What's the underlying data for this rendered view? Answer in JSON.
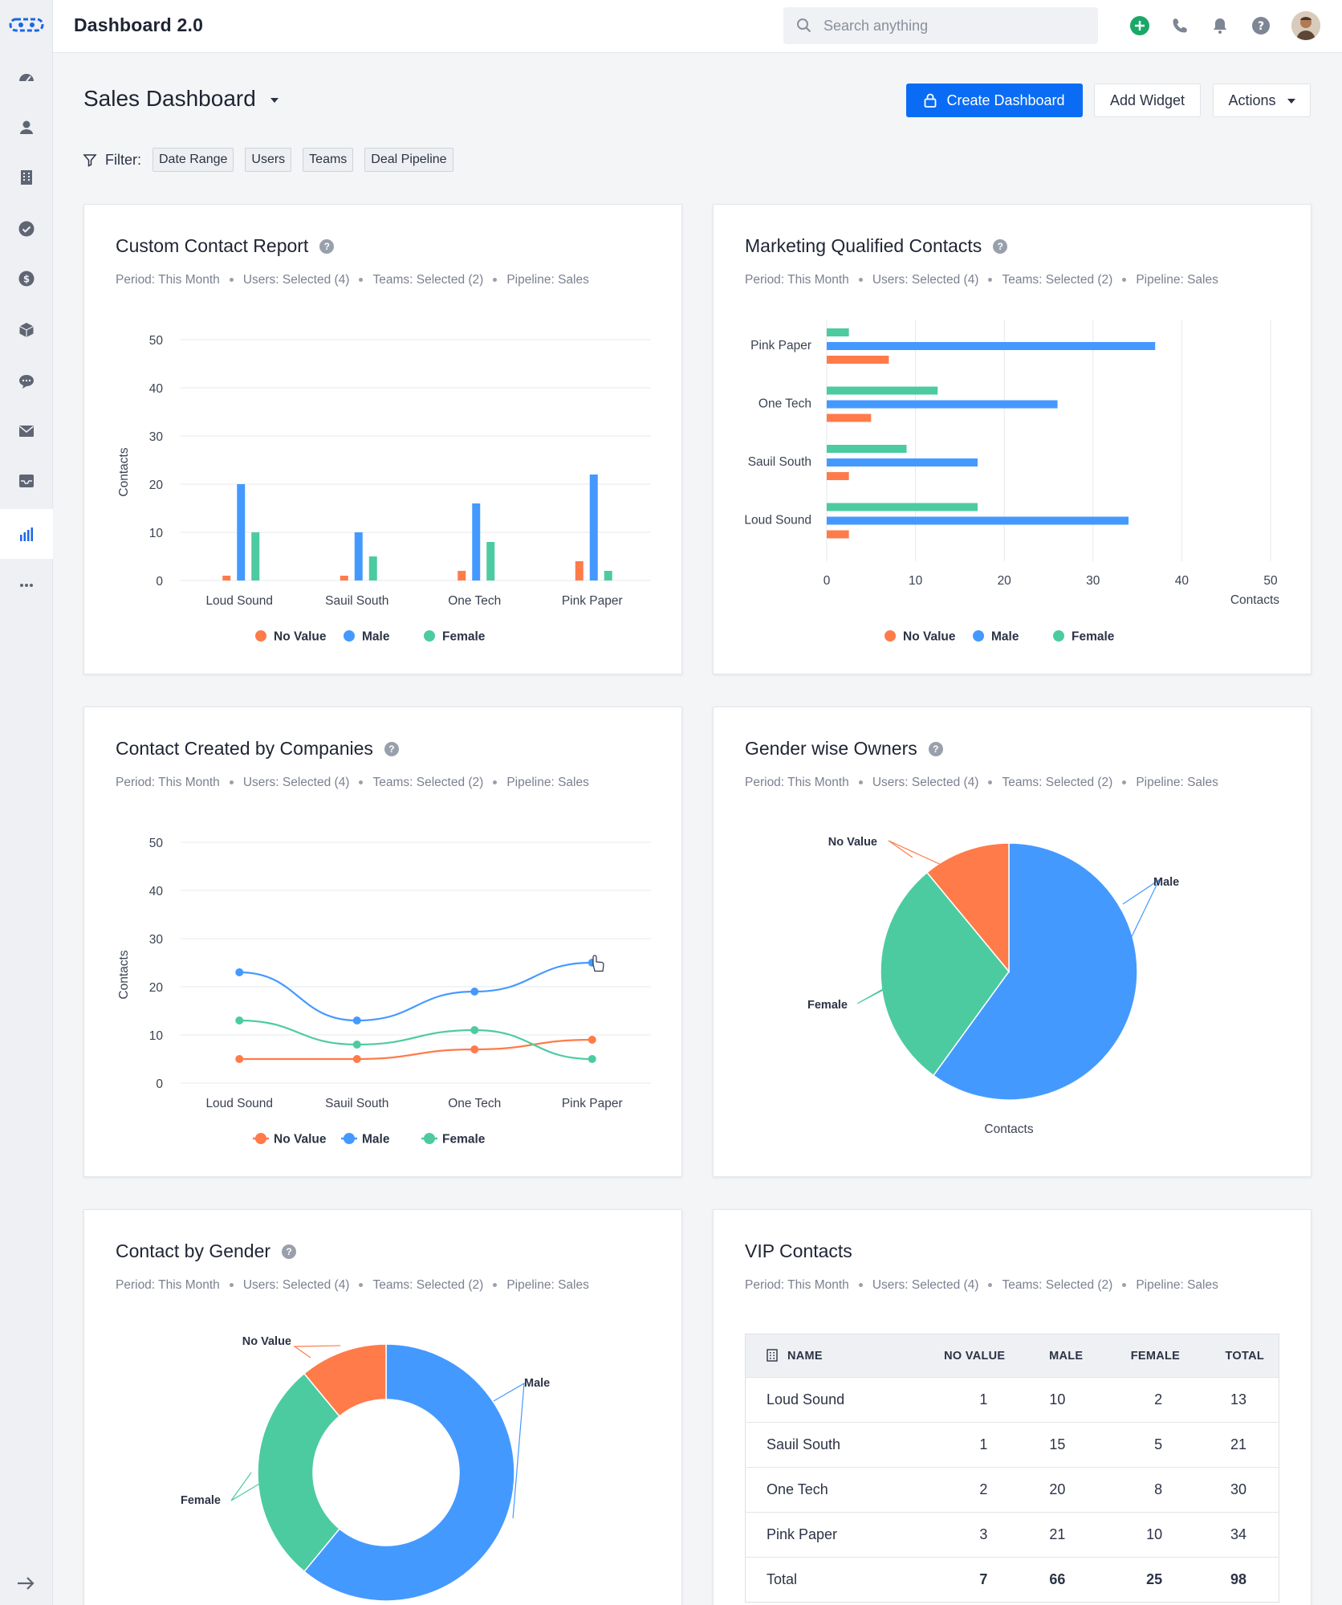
{
  "app": {
    "title": "Dashboard 2.0"
  },
  "search": {
    "placeholder": "Search anything"
  },
  "icons": {
    "logo": "logo-icon",
    "dashboard": "speedometer-icon",
    "contacts": "person-icon",
    "companies": "building-icon",
    "tasks": "checkmark-icon",
    "deals": "dollar-icon",
    "products": "box-icon",
    "chat": "chat-icon",
    "email": "mail-icon",
    "inbox": "inbox-icon",
    "reports": "bar-chart-icon",
    "more": "more-icon",
    "expand": "arrow-right-icon"
  },
  "colors": {
    "accent": "#0a6cf5",
    "no_value": "#ff7b4a",
    "male": "#4499ff",
    "female": "#4ccba1",
    "add": "#1aa866"
  },
  "header": {
    "title": "Sales Dashboard",
    "create_label": "Create Dashboard",
    "add_widget_label": "Add Widget",
    "actions_label": "Actions"
  },
  "filter": {
    "label": "Filter:",
    "chips": [
      "Date Range",
      "Users",
      "Teams",
      "Deal Pipeline"
    ]
  },
  "meta": {
    "period": "Period: This Month",
    "users": "Users: Selected (4)",
    "teams": "Teams: Selected (2)",
    "pipeline": "Pipeline: Sales"
  },
  "legend": {
    "no_value": "No Value",
    "male": "Male",
    "female": "Female"
  },
  "cards": {
    "custom": {
      "title": "Custom Contact Report"
    },
    "mql": {
      "title": "Marketing Qualified Contacts"
    },
    "companies": {
      "title": "Contact Created by Companies"
    },
    "owners": {
      "title": "Gender wise Owners"
    },
    "gender": {
      "title": "Contact by Gender"
    },
    "vip": {
      "title": "VIP Contacts"
    }
  },
  "chart_data": [
    {
      "type": "bar",
      "title": "Custom Contact Report",
      "categories": [
        "Loud Sound",
        "Sauil South",
        "One Tech",
        "Pink Paper"
      ],
      "series": [
        {
          "name": "No Value",
          "values": [
            1,
            1,
            2,
            4
          ]
        },
        {
          "name": "Male",
          "values": [
            20,
            10,
            16,
            22
          ]
        },
        {
          "name": "Female",
          "values": [
            10,
            5,
            8,
            2
          ]
        }
      ],
      "ylabel": "Contacts",
      "ylim": [
        0,
        50
      ],
      "yticks": [
        0,
        10,
        20,
        30,
        40,
        50
      ]
    },
    {
      "type": "bar",
      "orientation": "horizontal",
      "title": "Marketing Qualified Contacts",
      "categories": [
        "Pink Paper",
        "One Tech",
        "Sauil South",
        "Loud Sound"
      ],
      "series": [
        {
          "name": "Female",
          "values": [
            2.5,
            12.5,
            9,
            17
          ]
        },
        {
          "name": "Male",
          "values": [
            37,
            26,
            17,
            34
          ]
        },
        {
          "name": "No Value",
          "values": [
            7,
            5,
            2.5,
            2.5
          ]
        }
      ],
      "xlabel": "Contacts",
      "xlim": [
        0,
        50
      ],
      "xticks": [
        0,
        10,
        20,
        30,
        40,
        50
      ]
    },
    {
      "type": "line",
      "title": "Contact Created by Companies",
      "categories": [
        "Loud Sound",
        "Sauil South",
        "One Tech",
        "Pink Paper"
      ],
      "series": [
        {
          "name": "No Value",
          "values": [
            5,
            5,
            7,
            9
          ]
        },
        {
          "name": "Male",
          "values": [
            23,
            13,
            19,
            25
          ]
        },
        {
          "name": "Female",
          "values": [
            13,
            8,
            11,
            5
          ]
        }
      ],
      "ylabel": "Contacts",
      "ylim": [
        0,
        50
      ],
      "yticks": [
        0,
        10,
        20,
        30,
        40,
        50
      ]
    },
    {
      "type": "pie",
      "title": "Gender wise Owners",
      "xlabel": "Contacts",
      "labels": [
        "Male",
        "Female",
        "No Value"
      ],
      "values": [
        60,
        29,
        11
      ]
    },
    {
      "type": "pie",
      "donut": true,
      "title": "Contact by Gender",
      "labels": [
        "Male",
        "Female",
        "No Value"
      ],
      "values": [
        61,
        28,
        11
      ]
    }
  ],
  "vip": {
    "headers": [
      "NAME",
      "NO VALUE",
      "MALE",
      "FEMALE",
      "TOTAL"
    ],
    "rows": [
      [
        "Loud Sound",
        "1",
        "10",
        "2",
        "13"
      ],
      [
        "Sauil South",
        "1",
        "15",
        "5",
        "21"
      ],
      [
        "One Tech",
        "2",
        "20",
        "8",
        "30"
      ],
      [
        "Pink Paper",
        "3",
        "21",
        "10",
        "34"
      ]
    ],
    "total": [
      "Total",
      "7",
      "66",
      "25",
      "98"
    ]
  }
}
